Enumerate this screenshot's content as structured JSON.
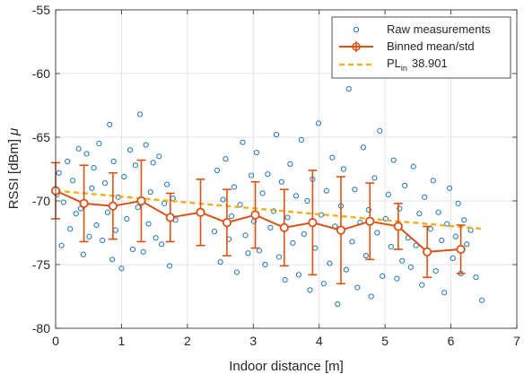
{
  "chart_data": {
    "type": "scatter",
    "xlabel": "Indoor distance [m]",
    "ylabel": "RSSI [dBm]",
    "ylabel_suffix": "μ",
    "xlim": [
      0,
      7
    ],
    "ylim": [
      -80,
      -55
    ],
    "xticks": [
      "0",
      "1",
      "2",
      "3",
      "4",
      "5",
      "6",
      "7"
    ],
    "yticks": [
      "-80",
      "-75",
      "-70",
      "-65",
      "-60",
      "-55"
    ],
    "grid": true,
    "legend_position": "top-right",
    "legend": {
      "raw": "Raw measurements",
      "binned": "Binned mean/std",
      "pl_base": "PL",
      "pl_sub": "in",
      "pl_value": "38.901"
    },
    "colors": {
      "raw": "#1f77b4",
      "binned": "#d95319",
      "pl": "#edb120"
    },
    "binned": {
      "x": [
        0.0,
        0.43,
        0.87,
        1.3,
        1.74,
        2.2,
        2.6,
        3.03,
        3.47,
        3.9,
        4.33,
        4.77,
        5.2,
        5.64,
        6.15
      ],
      "mean": [
        -69.2,
        -70.2,
        -70.4,
        -70.0,
        -71.3,
        -70.9,
        -71.7,
        -71.1,
        -72.1,
        -71.7,
        -72.3,
        -71.6,
        -72.0,
        -74.0,
        -73.8
      ],
      "std": [
        2.2,
        3.0,
        2.6,
        3.2,
        1.9,
        2.6,
        2.6,
        2.6,
        3.0,
        4.1,
        4.2,
        3.0,
        1.8,
        2.0,
        1.9
      ]
    },
    "pl_line": {
      "x": [
        0.0,
        6.5
      ],
      "y": [
        -69.2,
        -72.2
      ]
    },
    "raw_measurements": {
      "x": [
        0.02,
        0.05,
        0.09,
        0.12,
        0.18,
        0.22,
        0.26,
        0.31,
        0.35,
        0.38,
        0.42,
        0.47,
        0.51,
        0.55,
        0.58,
        0.62,
        0.66,
        0.71,
        0.75,
        0.79,
        0.82,
        0.86,
        0.88,
        0.91,
        0.95,
        1.0,
        1.04,
        1.08,
        1.13,
        1.17,
        1.21,
        1.25,
        1.28,
        1.33,
        1.37,
        1.41,
        1.44,
        1.48,
        1.52,
        1.57,
        1.61,
        1.65,
        1.69,
        1.73,
        1.78,
        1.82,
        2.41,
        2.45,
        2.5,
        2.54,
        2.58,
        2.63,
        2.67,
        2.71,
        2.75,
        2.8,
        2.84,
        2.88,
        2.92,
        2.97,
        3.01,
        3.05,
        3.09,
        3.14,
        3.18,
        3.22,
        3.26,
        3.31,
        3.35,
        3.39,
        3.43,
        3.48,
        3.52,
        3.56,
        3.6,
        3.65,
        3.69,
        3.73,
        3.77,
        3.82,
        3.86,
        3.9,
        3.94,
        3.99,
        4.03,
        4.07,
        4.11,
        4.16,
        4.2,
        4.24,
        4.28,
        4.33,
        4.37,
        4.41,
        4.45,
        4.5,
        4.54,
        4.58,
        4.62,
        4.67,
        4.71,
        4.75,
        4.79,
        4.84,
        4.88,
        4.92,
        4.96,
        5.01,
        5.05,
        5.09,
        5.13,
        5.18,
        5.22,
        5.26,
        5.3,
        5.35,
        5.39,
        5.43,
        5.47,
        5.52,
        5.56,
        5.6,
        5.64,
        5.69,
        5.73,
        5.77,
        5.81,
        5.86,
        5.9,
        5.94,
        5.98,
        6.03,
        6.07,
        6.11,
        6.15,
        6.2,
        6.24,
        6.3,
        6.38,
        6.47
      ],
      "y": [
        -69.5,
        -67.8,
        -73.5,
        -70.1,
        -66.9,
        -72.2,
        -68.4,
        -71.0,
        -65.9,
        -70.6,
        -74.2,
        -66.3,
        -72.8,
        -69.0,
        -67.4,
        -71.9,
        -65.5,
        -73.1,
        -68.6,
        -70.9,
        -64.0,
        -74.6,
        -66.9,
        -72.3,
        -69.7,
        -75.3,
        -68.1,
        -71.4,
        -66.0,
        -73.8,
        -67.2,
        -70.5,
        -63.2,
        -74.0,
        -65.6,
        -71.8,
        -69.3,
        -67.0,
        -72.9,
        -66.5,
        -73.4,
        -70.2,
        -68.7,
        -75.1,
        -69.8,
        -71.5,
        -72.4,
        -67.6,
        -74.8,
        -69.9,
        -66.7,
        -73.0,
        -71.2,
        -68.9,
        -75.6,
        -70.3,
        -65.4,
        -72.7,
        -74.1,
        -68.0,
        -71.6,
        -66.2,
        -73.9,
        -69.4,
        -75.0,
        -67.9,
        -72.1,
        -70.8,
        -64.8,
        -74.4,
        -68.5,
        -76.2,
        -71.3,
        -67.1,
        -73.3,
        -69.6,
        -75.8,
        -65.2,
        -72.6,
        -70.0,
        -77.0,
        -68.3,
        -73.7,
        -63.9,
        -71.1,
        -76.5,
        -69.2,
        -74.9,
        -66.6,
        -72.0,
        -78.1,
        -70.4,
        -67.5,
        -75.4,
        -61.2,
        -73.2,
        -69.1,
        -76.8,
        -71.7,
        -65.8,
        -74.3,
        -70.7,
        -77.5,
        -68.2,
        -72.5,
        -64.5,
        -75.9,
        -71.4,
        -69.5,
        -73.6,
        -66.8,
        -76.1,
        -70.6,
        -74.7,
        -68.8,
        -72.9,
        -75.2,
        -67.3,
        -73.5,
        -71.0,
        -76.6,
        -69.7,
        -74.0,
        -72.2,
        -68.4,
        -75.5,
        -70.9,
        -73.1,
        -77.2,
        -71.8,
        -69.0,
        -74.5,
        -72.8,
        -70.2,
        -75.7,
        -71.5,
        -73.4,
        -72.3,
        -76.0,
        -77.8
      ]
    }
  }
}
